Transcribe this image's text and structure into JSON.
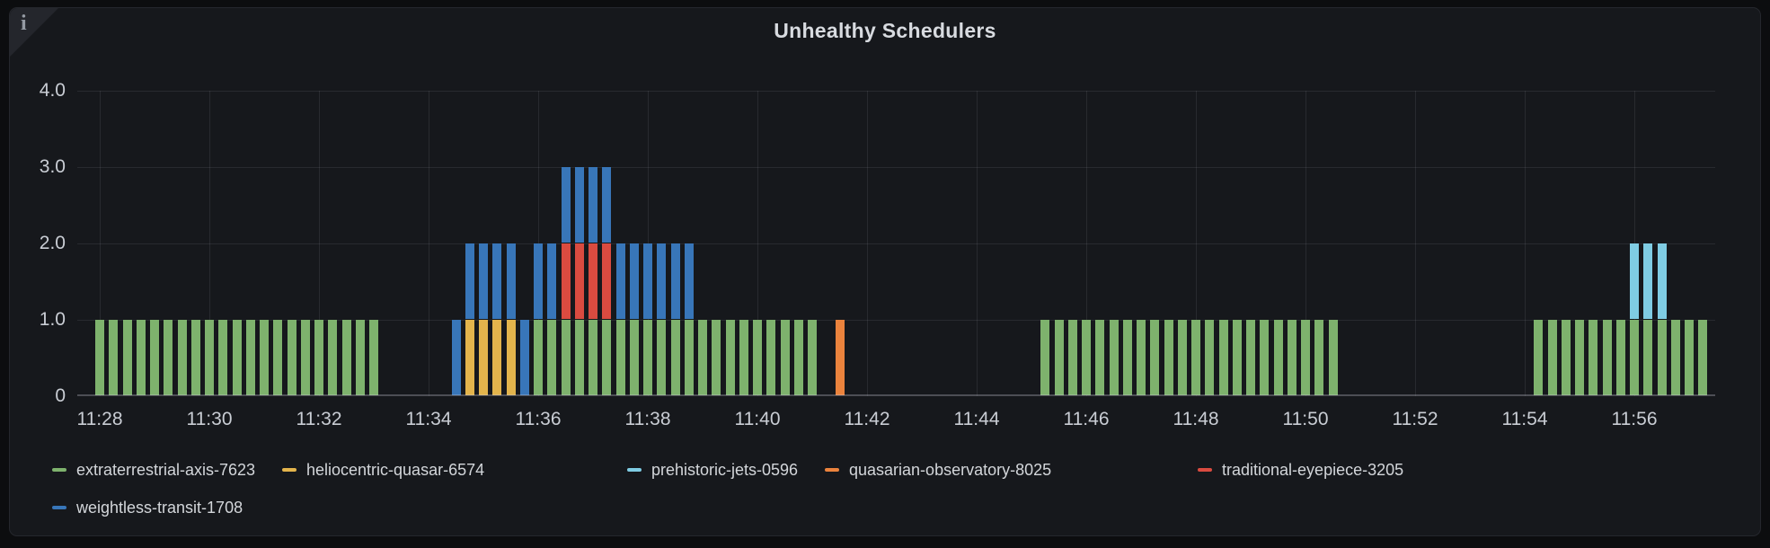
{
  "panel": {
    "title": "Unhealthy Schedulers",
    "info_icon": "i"
  },
  "chart_data": {
    "type": "bar",
    "stacked": true,
    "title": "Unhealthy Schedulers",
    "interval_seconds": 15,
    "bar_unit_value": 1,
    "x_axis": {
      "start": "11:27:35",
      "end": "11:57:30",
      "tick_labels": [
        "11:28",
        "11:30",
        "11:32",
        "11:34",
        "11:36",
        "11:38",
        "11:40",
        "11:42",
        "11:44",
        "11:46",
        "11:48",
        "11:50",
        "11:52",
        "11:54",
        "11:56"
      ]
    },
    "y_axis": {
      "min": 0,
      "max": 4,
      "tick_labels": [
        "0",
        "1.0",
        "2.0",
        "3.0",
        "4.0"
      ],
      "tick_values": [
        0,
        1,
        2,
        3,
        4
      ]
    },
    "grid": true,
    "legend_position": "bottom",
    "series": [
      {
        "name": "extraterrestrial-axis-7623",
        "color": "#7EB26D",
        "value_per_bar": 1,
        "active_ranges": [
          [
            "11:28:00",
            "11:33:00"
          ],
          [
            "11:36:00",
            "11:41:00"
          ],
          [
            "11:45:15",
            "11:50:30"
          ],
          [
            "11:54:15",
            "11:57:15"
          ]
        ]
      },
      {
        "name": "heliocentric-quasar-6574",
        "color": "#E3B44C",
        "value_per_bar": 1,
        "active_ranges": [
          [
            "11:34:45",
            "11:35:30"
          ]
        ]
      },
      {
        "name": "prehistoric-jets-0596",
        "color": "#7FCCE3",
        "value_per_bar": 1,
        "active_ranges": [
          [
            "11:56:00",
            "11:56:30"
          ]
        ]
      },
      {
        "name": "quasarian-observatory-8025",
        "color": "#EB833D",
        "value_per_bar": 1,
        "active_ranges": [
          [
            "11:41:30",
            "11:41:30"
          ]
        ]
      },
      {
        "name": "traditional-eyepiece-3205",
        "color": "#DA4B40",
        "value_per_bar": 1,
        "active_ranges": [
          [
            "11:36:30",
            "11:37:15"
          ]
        ]
      },
      {
        "name": "weightless-transit-1708",
        "color": "#3876B9",
        "value_per_bar": 1,
        "active_ranges": [
          [
            "11:34:30",
            "11:38:45"
          ]
        ]
      }
    ]
  }
}
